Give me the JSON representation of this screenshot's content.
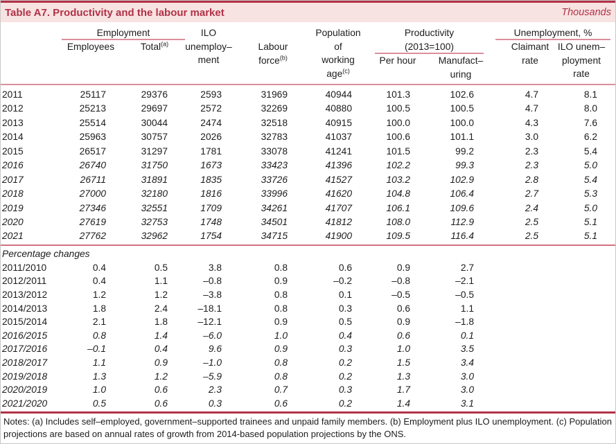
{
  "title_bar": {
    "title": "Table A7. Productivity and the labour market",
    "unit": "Thousands"
  },
  "colors": {
    "accent": "#b13247",
    "title_background": "#f7e3e2",
    "pink_rule": "#da8e9b",
    "dark_rule": "#b13247",
    "text": "#1c1c1c"
  },
  "table": {
    "headers": {
      "employment": {
        "label": "Employment"
      },
      "employees": {
        "label": "Employees"
      },
      "total": {
        "label": "Total",
        "sup": "(a)"
      },
      "ilo_unemployment": {
        "l1": "ILO",
        "l2": "unemploy–",
        "l3": "ment"
      },
      "labour_force": {
        "l1": "Labour",
        "l2": "force",
        "sup": "(b)"
      },
      "population": {
        "l1": "Population",
        "l2": "of",
        "l3": "working",
        "l4": "age",
        "sup": "(c)"
      },
      "productivity": {
        "l1": "Productivity",
        "l2": "(2013=100)"
      },
      "per_hour": {
        "label": "Per hour"
      },
      "manufacturing": {
        "l1": "Manufact–",
        "l2": "uring"
      },
      "unemployment_pct": {
        "label": "Unemployment, %"
      },
      "claimant": {
        "l1": "Claimant",
        "l2": "rate"
      },
      "ilo_rate": {
        "l1": "ILO unem–",
        "l2": "ployment",
        "l3": "rate"
      }
    },
    "levels": [
      {
        "label": "2011",
        "italic": false,
        "values": [
          "25117",
          "29376",
          "2593",
          "31969",
          "40944",
          "101.3",
          "102.6",
          "4.7",
          "8.1"
        ]
      },
      {
        "label": "2012",
        "italic": false,
        "values": [
          "25213",
          "29697",
          "2572",
          "32269",
          "40880",
          "100.5",
          "100.5",
          "4.7",
          "8.0"
        ]
      },
      {
        "label": "2013",
        "italic": false,
        "values": [
          "25514",
          "30044",
          "2474",
          "32518",
          "40915",
          "100.0",
          "100.0",
          "4.3",
          "7.6"
        ]
      },
      {
        "label": "2014",
        "italic": false,
        "values": [
          "25963",
          "30757",
          "2026",
          "32783",
          "41037",
          "100.6",
          "101.1",
          "3.0",
          "6.2"
        ]
      },
      {
        "label": "2015",
        "italic": false,
        "values": [
          "26517",
          "31297",
          "1781",
          "33078",
          "41241",
          "101.5",
          "99.2",
          "2.3",
          "5.4"
        ]
      },
      {
        "label": "2016",
        "italic": true,
        "values": [
          "26740",
          "31750",
          "1673",
          "33423",
          "41396",
          "102.2",
          "99.3",
          "2.3",
          "5.0"
        ]
      },
      {
        "label": "2017",
        "italic": true,
        "values": [
          "26711",
          "31891",
          "1835",
          "33726",
          "41527",
          "103.2",
          "102.9",
          "2.8",
          "5.4"
        ]
      },
      {
        "label": "2018",
        "italic": true,
        "values": [
          "27000",
          "32180",
          "1816",
          "33996",
          "41620",
          "104.8",
          "106.4",
          "2.7",
          "5.3"
        ]
      },
      {
        "label": "2019",
        "italic": true,
        "values": [
          "27346",
          "32551",
          "1709",
          "34261",
          "41707",
          "106.1",
          "109.6",
          "2.4",
          "5.0"
        ]
      },
      {
        "label": "2020",
        "italic": true,
        "values": [
          "27619",
          "32753",
          "1748",
          "34501",
          "41812",
          "108.0",
          "112.9",
          "2.5",
          "5.1"
        ]
      },
      {
        "label": "2021",
        "italic": true,
        "values": [
          "27762",
          "32962",
          "1754",
          "34715",
          "41900",
          "109.5",
          "116.4",
          "2.5",
          "5.1"
        ]
      }
    ],
    "section_label": "Percentage changes",
    "changes": [
      {
        "label": "2011/2010",
        "italic": false,
        "values": [
          "0.4",
          "0.5",
          "3.8",
          "0.8",
          "0.6",
          "0.9",
          "2.7",
          "",
          ""
        ]
      },
      {
        "label": "2012/2011",
        "italic": false,
        "values": [
          "0.4",
          "1.1",
          "–0.8",
          "0.9",
          "–0.2",
          "–0.8",
          "–2.1",
          "",
          ""
        ]
      },
      {
        "label": "2013/2012",
        "italic": false,
        "values": [
          "1.2",
          "1.2",
          "–3.8",
          "0.8",
          "0.1",
          "–0.5",
          "–0.5",
          "",
          ""
        ]
      },
      {
        "label": "2014/2013",
        "italic": false,
        "values": [
          "1.8",
          "2.4",
          "–18.1",
          "0.8",
          "0.3",
          "0.6",
          "1.1",
          "",
          ""
        ]
      },
      {
        "label": "2015/2014",
        "italic": false,
        "values": [
          "2.1",
          "1.8",
          "–12.1",
          "0.9",
          "0.5",
          "0.9",
          "–1.8",
          "",
          ""
        ]
      },
      {
        "label": "2016/2015",
        "italic": true,
        "values": [
          "0.8",
          "1.4",
          "–6.0",
          "1.0",
          "0.4",
          "0.6",
          "0.1",
          "",
          ""
        ]
      },
      {
        "label": "2017/2016",
        "italic": true,
        "values": [
          "–0.1",
          "0.4",
          "9.6",
          "0.9",
          "0.3",
          "1.0",
          "3.5",
          "",
          ""
        ]
      },
      {
        "label": "2018/2017",
        "italic": true,
        "values": [
          "1.1",
          "0.9",
          "–1.0",
          "0.8",
          "0.2",
          "1.5",
          "3.4",
          "",
          ""
        ]
      },
      {
        "label": "2019/2018",
        "italic": true,
        "values": [
          "1.3",
          "1.2",
          "–5.9",
          "0.8",
          "0.2",
          "1.3",
          "3.0",
          "",
          ""
        ]
      },
      {
        "label": "2020/2019",
        "italic": true,
        "values": [
          "1.0",
          "0.6",
          "2.3",
          "0.7",
          "0.3",
          "1.7",
          "3.0",
          "",
          ""
        ]
      },
      {
        "label": "2021/2020",
        "italic": true,
        "values": [
          "0.5",
          "0.6",
          "0.3",
          "0.6",
          "0.2",
          "1.4",
          "3.1",
          "",
          ""
        ]
      }
    ]
  },
  "notes": "Notes: (a) Includes self–employed, government–supported trainees and unpaid family members. (b) Employment plus ILO unemployment. (c) Population projections are based on annual rates of growth from 2014-based population projections by the ONS."
}
